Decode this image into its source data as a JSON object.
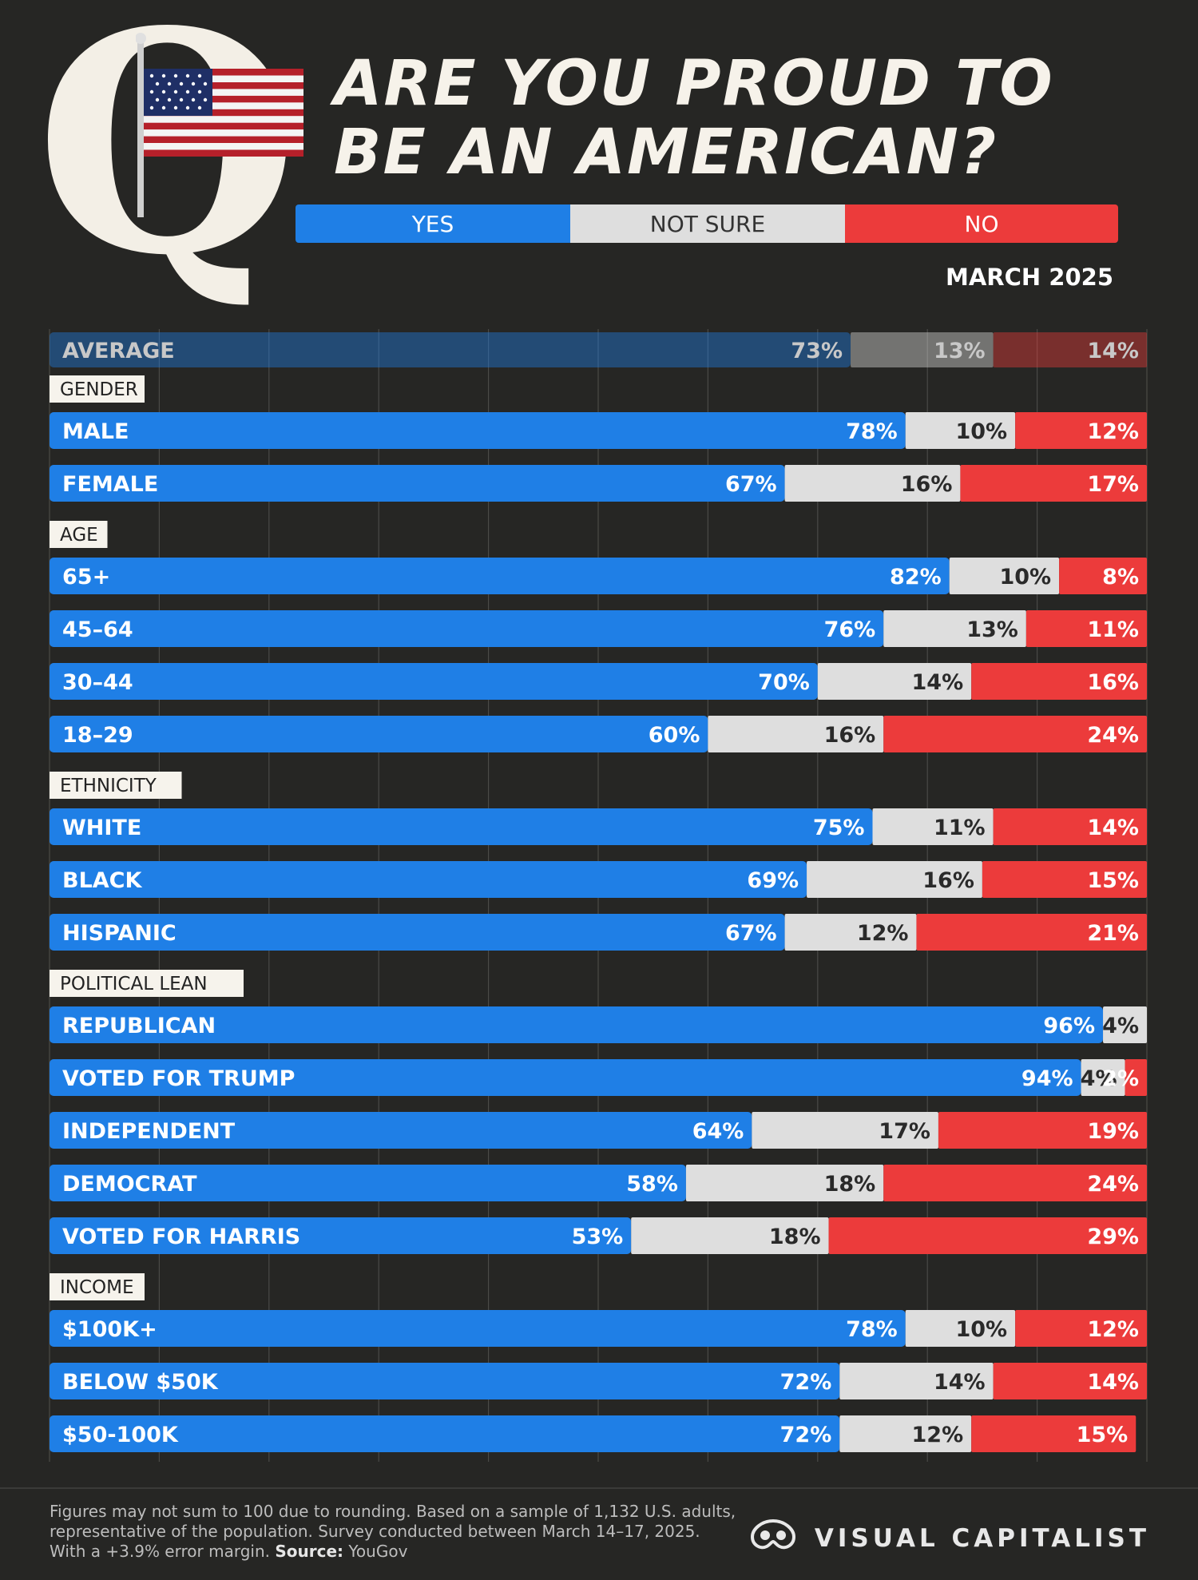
{
  "title": "Are You Proud to Be an American?",
  "title_line1": "Are You Proud to",
  "title_line2": "Be an American?",
  "q_letter": "Q",
  "legend": {
    "yes": "YES",
    "not_sure": "NOT SURE",
    "no": "NO"
  },
  "date": "MARCH 2025",
  "colors": {
    "yes": "#1f7fe6",
    "not_sure": "#dedede",
    "no": "#ec3b3b",
    "background": "#262624"
  },
  "chart_data": {
    "type": "bar",
    "orientation": "horizontal-stacked-100",
    "series": [
      {
        "name": "YES"
      },
      {
        "name": "NOT SURE"
      },
      {
        "name": "NO"
      }
    ],
    "average": {
      "label": "AVERAGE",
      "values": [
        73,
        13,
        14
      ]
    },
    "groups": [
      {
        "name": "GENDER",
        "rows": [
          {
            "label": "MALE",
            "values": [
              78,
              10,
              12
            ]
          },
          {
            "label": "FEMALE",
            "values": [
              67,
              16,
              17
            ]
          }
        ]
      },
      {
        "name": "AGE",
        "rows": [
          {
            "label": "65+",
            "values": [
              82,
              10,
              8
            ]
          },
          {
            "label": "45–64",
            "values": [
              76,
              13,
              11
            ]
          },
          {
            "label": "30–44",
            "values": [
              70,
              14,
              16
            ]
          },
          {
            "label": "18–29",
            "values": [
              60,
              16,
              24
            ]
          }
        ]
      },
      {
        "name": "ETHNICITY",
        "rows": [
          {
            "label": "WHITE",
            "values": [
              75,
              11,
              14
            ]
          },
          {
            "label": "BLACK",
            "values": [
              69,
              16,
              15
            ]
          },
          {
            "label": "HISPANIC",
            "values": [
              67,
              12,
              21
            ]
          }
        ]
      },
      {
        "name": "POLITICAL LEAN",
        "rows": [
          {
            "label": "REPUBLICAN",
            "values": [
              96,
              4,
              0
            ]
          },
          {
            "label": "VOTED FOR TRUMP",
            "values": [
              94,
              4,
              2
            ]
          },
          {
            "label": "INDEPENDENT",
            "values": [
              64,
              17,
              19
            ]
          },
          {
            "label": "DEMOCRAT",
            "values": [
              58,
              18,
              24
            ]
          },
          {
            "label": "VOTED FOR HARRIS",
            "values": [
              53,
              18,
              29
            ]
          }
        ]
      },
      {
        "name": "INCOME",
        "rows": [
          {
            "label": "$100K+",
            "values": [
              78,
              10,
              12
            ]
          },
          {
            "label": "BELOW $50K",
            "values": [
              72,
              14,
              14
            ]
          },
          {
            "label": "$50-100K",
            "values": [
              72,
              12,
              15
            ]
          }
        ]
      }
    ]
  },
  "footnote": {
    "line1": "Figures may not sum to 100 due to rounding. Based on a sample of 1,132 U.S. adults,",
    "line2": "representative of the population. Survey conducted between March 14–17, 2025.",
    "line3_prefix": "With a +3.9% error margin.",
    "source_label": "Source:",
    "source": "YouGov"
  },
  "brand": "VISUAL CAPITALIST"
}
